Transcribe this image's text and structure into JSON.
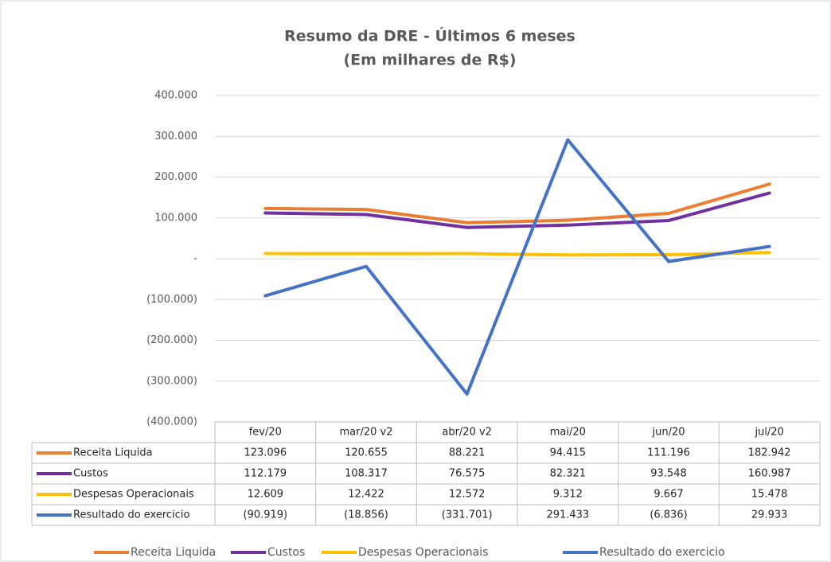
{
  "chart_data": {
    "type": "line",
    "title": "Resumo da DRE - Últimos 6 meses",
    "subtitle": "(Em milhares de R$)",
    "categories": [
      "fev/20",
      "mar/20 v2",
      "abr/20 v2",
      "mai/20",
      "jun/20",
      "jul/20"
    ],
    "ylim": [
      -400000,
      400000
    ],
    "yticks": [
      {
        "value": 400000,
        "label": "400.000"
      },
      {
        "value": 300000,
        "label": "300.000"
      },
      {
        "value": 200000,
        "label": "200.000"
      },
      {
        "value": 100000,
        "label": "100.000"
      },
      {
        "value": 0,
        "label": "-"
      },
      {
        "value": -100000,
        "label": "(100.000)"
      },
      {
        "value": -200000,
        "label": "(200.000)"
      },
      {
        "value": -300000,
        "label": "(300.000)"
      },
      {
        "value": -400000,
        "label": "(400.000)"
      }
    ],
    "grid": true,
    "legend": "bottom",
    "series": [
      {
        "name": "Receita Liquida",
        "color": "#ED7D31",
        "values": [
          123096,
          120655,
          88221,
          94415,
          111196,
          182942
        ],
        "value_labels": [
          "123.096",
          "120.655",
          "88.221",
          "94.415",
          "111.196",
          "182.942"
        ]
      },
      {
        "name": "Custos",
        "color": "#7030A0",
        "values": [
          112179,
          108317,
          76575,
          82321,
          93548,
          160987
        ],
        "value_labels": [
          "112.179",
          "108.317",
          "76.575",
          "82.321",
          "93.548",
          "160.987"
        ]
      },
      {
        "name": "Despesas Operacionais",
        "color": "#FFC000",
        "values": [
          12609,
          12422,
          12572,
          9312,
          9667,
          15478
        ],
        "value_labels": [
          "12.609",
          "12.422",
          "12.572",
          "9.312",
          "9.667",
          "15.478"
        ]
      },
      {
        "name": "Resultado do exercicio",
        "color": "#4472C4",
        "values": [
          -90919,
          -18856,
          -331701,
          291433,
          -6836,
          29933
        ],
        "value_labels": [
          "(90.919)",
          "(18.856)",
          "(331.701)",
          "291.433",
          "(6.836)",
          "29.933"
        ]
      }
    ]
  }
}
